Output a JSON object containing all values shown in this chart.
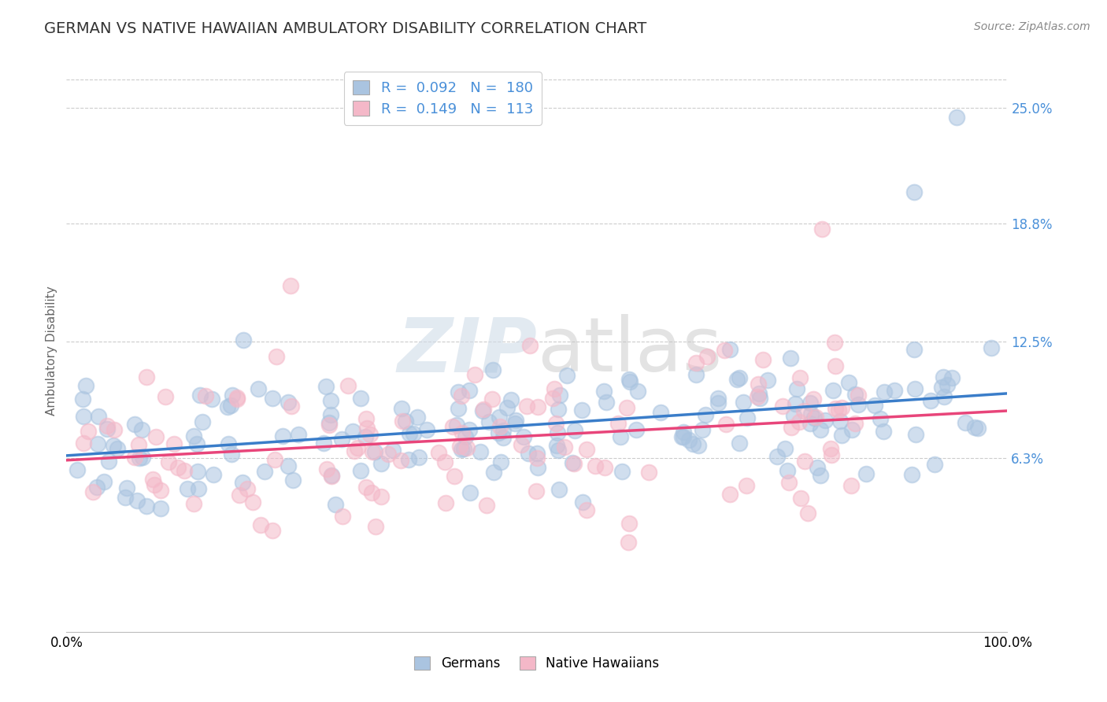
{
  "title": "GERMAN VS NATIVE HAWAIIAN AMBULATORY DISABILITY CORRELATION CHART",
  "source": "Source: ZipAtlas.com",
  "ylabel": "Ambulatory Disability",
  "xlim": [
    0,
    100
  ],
  "ylim": [
    -3,
    27
  ],
  "ytick_vals": [
    6.3,
    12.5,
    18.8,
    25.0
  ],
  "ytick_labels": [
    "6.3%",
    "12.5%",
    "18.8%",
    "25.0%"
  ],
  "blue_color": "#aac4e0",
  "pink_color": "#f4b8c8",
  "line_blue": "#3a7dc9",
  "line_pink": "#e8457a",
  "tick_color": "#4a90d9",
  "legend_R_blue": "0.092",
  "legend_N_blue": "180",
  "legend_R_pink": "0.149",
  "legend_N_pink": "113",
  "watermark_zip": "ZIP",
  "watermark_atlas": "atlas",
  "title_fontsize": 14,
  "axis_label_fontsize": 11,
  "tick_fontsize": 12,
  "background_color": "#ffffff",
  "grid_color": "#cccccc",
  "seed": 7,
  "N_blue": 180,
  "N_pink": 113
}
